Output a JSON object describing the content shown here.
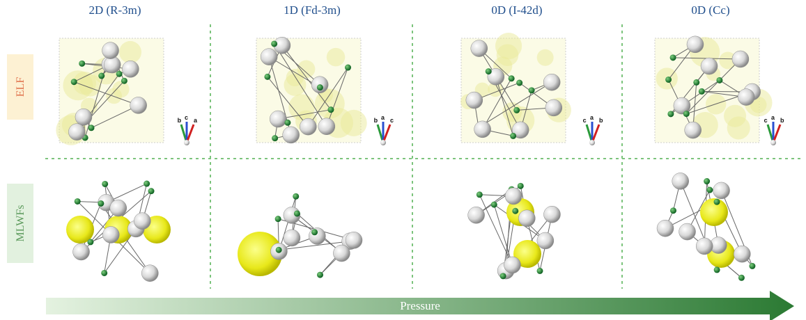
{
  "header": {
    "columns": [
      "2D (R-3m)",
      "1D (Fd-3m)",
      "0D (I-42d)",
      "0D (Cc)"
    ]
  },
  "rows": [
    "ELF",
    "MLWFs"
  ],
  "axis_labels": [
    [
      "b",
      "c",
      "a"
    ],
    [
      "b",
      "a",
      "c"
    ],
    [
      "c",
      "a",
      "b"
    ],
    [
      "c",
      "a",
      "b"
    ]
  ],
  "arrow_label": "Pressure"
}
